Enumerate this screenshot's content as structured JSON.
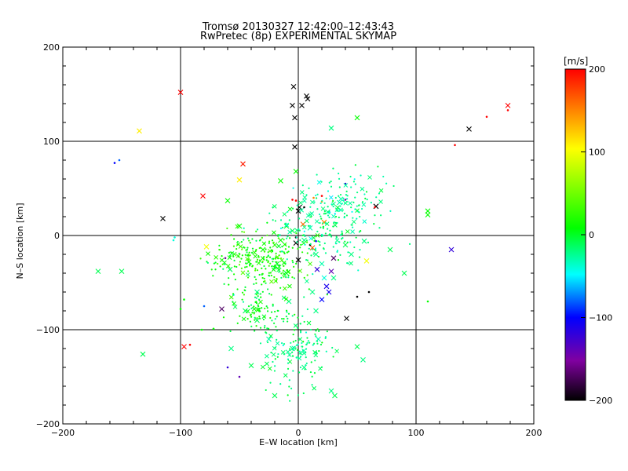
{
  "title": "Tromsø 20130327 12:42:00–12:43:43",
  "subtitle": "RwPretec (8p) EXPERIMENTAL SKYMAP",
  "colorbar": {
    "unit": "[m/s]",
    "min": -200,
    "max": 200,
    "ticks": [
      "200",
      "100",
      "0",
      "−100",
      "−200"
    ]
  },
  "chart_data": {
    "type": "scatter",
    "xlabel": "E–W location [km]",
    "ylabel": "N–S location [km]",
    "xlim": [
      -200,
      200
    ],
    "ylim": [
      -200,
      200
    ],
    "xticks": [
      "−200",
      "−100",
      "0",
      "100",
      "200"
    ],
    "yticks": [
      "−200",
      "−100",
      "0",
      "100",
      "200"
    ],
    "grid_lines_x": [
      -100,
      0,
      100
    ],
    "grid_lines_y": [
      -100,
      0,
      100
    ],
    "color_by": "velocity [m/s]",
    "colormap": [
      "#000000",
      "#8000a0",
      "#0000ff",
      "#00ffff",
      "#00ff00",
      "#ffff00",
      "#ff0000"
    ],
    "series": [
      {
        "marker": "x",
        "points": [
          [
            -4,
            158,
            -210
          ],
          [
            7,
            148,
            -210
          ],
          [
            8,
            145,
            -210
          ],
          [
            -5,
            138,
            -210
          ],
          [
            3,
            138,
            -210
          ],
          [
            -3,
            125,
            -210
          ],
          [
            -3,
            94,
            -210
          ],
          [
            145,
            113,
            -210
          ],
          [
            -115,
            18,
            -210
          ],
          [
            66,
            31,
            -210
          ],
          [
            1,
            30,
            -210
          ],
          [
            0,
            26,
            -210
          ],
          [
            -2,
            -8,
            -210
          ],
          [
            0,
            -26,
            -210
          ],
          [
            41,
            -88,
            -210
          ],
          [
            -100,
            152,
            200
          ],
          [
            -97,
            -118,
            200
          ],
          [
            178,
            138,
            200
          ],
          [
            -81,
            42,
            200
          ],
          [
            -47,
            76,
            190
          ],
          [
            -135,
            111,
            110
          ],
          [
            -50,
            59,
            110
          ],
          [
            -78,
            -12,
            100
          ],
          [
            58,
            -27,
            100
          ],
          [
            22,
            14,
            150
          ],
          [
            4,
            12,
            160
          ],
          [
            12,
            -13,
            170
          ],
          [
            -150,
            -38,
            -10
          ],
          [
            -170,
            -38,
            -10
          ],
          [
            -132,
            -126,
            -10
          ],
          [
            -58,
            -36,
            -10
          ],
          [
            -60,
            37,
            10
          ],
          [
            -50,
            10,
            10
          ],
          [
            50,
            125,
            10
          ],
          [
            110,
            22,
            10
          ],
          [
            110,
            26,
            10
          ],
          [
            90,
            -40,
            -10
          ],
          [
            78,
            -15,
            -10
          ],
          [
            -15,
            58,
            10
          ],
          [
            -2,
            68,
            10
          ],
          [
            -57,
            -120,
            -20
          ],
          [
            -40,
            -138,
            -10
          ],
          [
            -20,
            -170,
            -10
          ],
          [
            28,
            -165,
            -20
          ],
          [
            31,
            -170,
            -10
          ],
          [
            55,
            -132,
            -20
          ],
          [
            50,
            -118,
            -10
          ],
          [
            28,
            114,
            -20
          ],
          [
            -35,
            -60,
            -20
          ],
          [
            -45,
            -80,
            -10
          ],
          [
            -35,
            -90,
            -10
          ],
          [
            -8,
            -70,
            -20
          ],
          [
            -18,
            -30,
            0
          ],
          [
            -30,
            -15,
            10
          ],
          [
            -42,
            -28,
            10
          ],
          [
            -20,
            -10,
            20
          ],
          [
            -10,
            -40,
            -10
          ],
          [
            12,
            -60,
            -20
          ],
          [
            30,
            -45,
            -20
          ],
          [
            40,
            -10,
            -10
          ],
          [
            45,
            -20,
            -20
          ],
          [
            56,
            -6,
            -20
          ],
          [
            20,
            -30,
            -30
          ],
          [
            15,
            -80,
            -20
          ],
          [
            -25,
            -110,
            -30
          ],
          [
            -5,
            -120,
            -20
          ],
          [
            5,
            -140,
            -20
          ],
          [
            17,
            -110,
            -30
          ],
          [
            22,
            -45,
            -40
          ],
          [
            -5,
            5,
            -10
          ],
          [
            5,
            -5,
            -20
          ],
          [
            10,
            8,
            -30
          ],
          [
            -10,
            10,
            0
          ],
          [
            -15,
            -5,
            10
          ],
          [
            25,
            25,
            -20
          ],
          [
            35,
            35,
            -30
          ],
          [
            15,
            -20,
            -20
          ],
          [
            130,
            -15,
            -120
          ],
          [
            -65,
            -78,
            -170
          ],
          [
            16,
            -36,
            -120
          ],
          [
            28,
            -38,
            -140
          ],
          [
            24,
            -54,
            -110
          ],
          [
            30,
            -24,
            -170
          ],
          [
            26,
            -60,
            -110
          ],
          [
            20,
            -68,
            -100
          ]
        ]
      },
      {
        "marker": "dot",
        "points": [
          [
            -156,
            77,
            -100
          ],
          [
            -152,
            80,
            -80
          ],
          [
            133,
            96,
            200
          ],
          [
            160,
            126,
            200
          ],
          [
            178,
            133,
            200
          ],
          [
            -92,
            -116,
            200
          ],
          [
            65,
            30,
            200
          ],
          [
            20,
            42,
            200
          ],
          [
            -2,
            37,
            200
          ],
          [
            -5,
            38,
            200
          ],
          [
            13,
            40,
            150
          ],
          [
            20,
            36,
            140
          ],
          [
            -55,
            -63,
            -50
          ],
          [
            -80,
            -75,
            -80
          ],
          [
            -60,
            -140,
            -120
          ],
          [
            -50,
            -150,
            -140
          ],
          [
            -62,
            -24,
            -150
          ],
          [
            15,
            -6,
            -100
          ],
          [
            -2,
            -2,
            -200
          ],
          [
            5,
            30,
            -200
          ],
          [
            10,
            -10,
            -200
          ],
          [
            40,
            38,
            -150
          ],
          [
            40,
            55,
            -120
          ],
          [
            50,
            -65,
            -200
          ],
          [
            60,
            -60,
            -200
          ],
          [
            -106,
            -5,
            -40
          ],
          [
            -105,
            -2,
            -40
          ],
          [
            110,
            -70,
            10
          ],
          [
            -97,
            -68,
            10
          ],
          [
            -100,
            -78,
            10
          ],
          [
            -82,
            -100,
            10
          ],
          [
            -72,
            -99,
            10
          ]
        ]
      }
    ]
  }
}
